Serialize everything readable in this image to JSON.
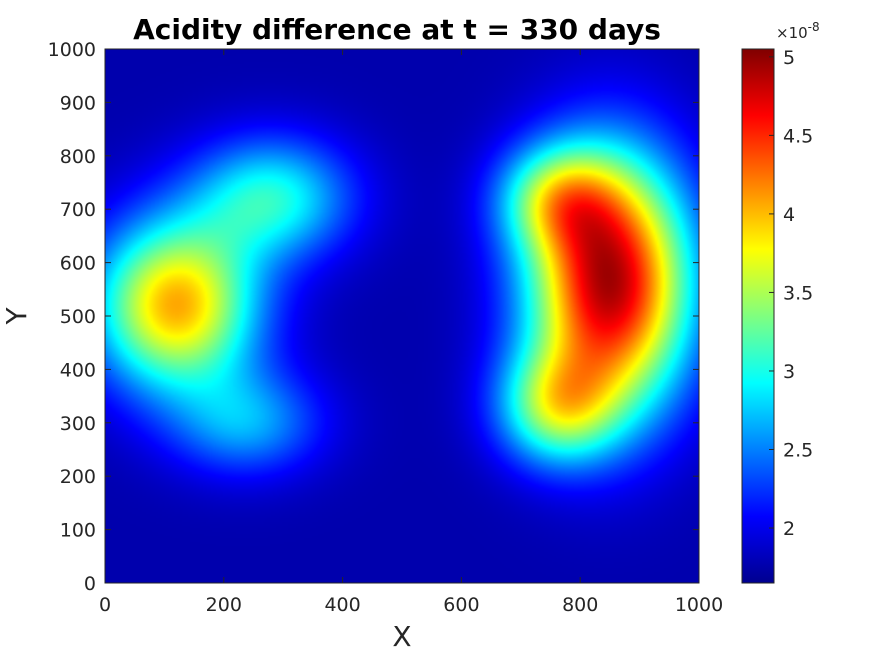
{
  "chart_data": {
    "type": "heatmap",
    "title": "Acidity difference at t = 330 days",
    "xlabel": "X",
    "ylabel": "Y",
    "xlim": [
      0,
      1000
    ],
    "ylim": [
      0,
      1000
    ],
    "x_ticks": [
      "0",
      "200",
      "400",
      "600",
      "800",
      "1000"
    ],
    "y_ticks": [
      "0",
      "100",
      "200",
      "300",
      "400",
      "500",
      "600",
      "700",
      "800",
      "900",
      "1000"
    ],
    "colormap": "jet",
    "colorbar": {
      "clim": [
        1.65,
        5.05
      ],
      "ticks": [
        "2",
        "2.5",
        "3",
        "3.5",
        "4",
        "4.5",
        "5"
      ],
      "exponent_base": "×10",
      "exponent": "-8"
    },
    "field": {
      "baseline": 1.8,
      "features": [
        {
          "x": 850,
          "y": 560,
          "sx": 95,
          "sy": 165,
          "amp": 3.1
        },
        {
          "x": 760,
          "y": 720,
          "sx": 70,
          "sy": 70,
          "amp": 1.2
        },
        {
          "x": 760,
          "y": 330,
          "sx": 70,
          "sy": 75,
          "amp": 1.4
        },
        {
          "x": 120,
          "y": 520,
          "sx": 95,
          "sy": 110,
          "amp": 2.25
        },
        {
          "x": 280,
          "y": 720,
          "sx": 95,
          "sy": 80,
          "amp": 1.2
        },
        {
          "x": 240,
          "y": 300,
          "sx": 90,
          "sy": 70,
          "amp": 0.8
        }
      ]
    }
  }
}
